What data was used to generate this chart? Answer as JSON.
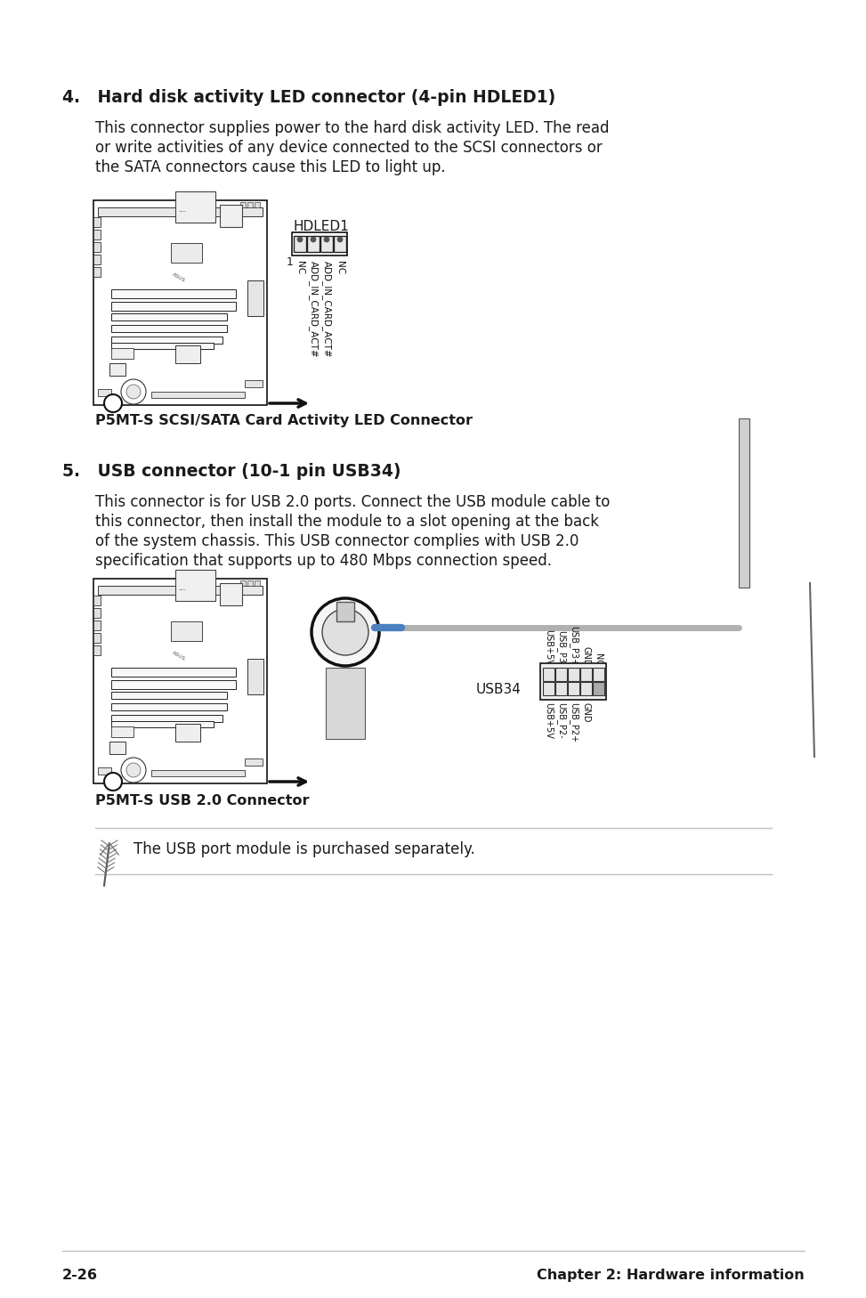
{
  "bg_color": "#ffffff",
  "text_color": "#1a1a1a",
  "section4_title": "4.   Hard disk activity LED connector (4-pin HDLED1)",
  "section4_body_line1": "This connector supplies power to the hard disk activity LED. The read",
  "section4_body_line2": "or write activities of any device connected to the SCSI connectors or",
  "section4_body_line3": "the SATA connectors cause this LED to light up.",
  "section4_diagram_label": "HDLED1",
  "section4_pin_labels": [
    "NC",
    "ADD_IN_CARD_ACT#",
    "ADD_IN_CARD_ACT#",
    "NC"
  ],
  "section4_caption": "P5MT-S SCSI/SATA Card Activity LED Connector",
  "section5_title": "5.   USB connector (10-1 pin USB34)",
  "section5_body_line1": "This connector is for USB 2.0 ports. Connect the USB module cable to",
  "section5_body_line2": "this connector, then install the module to a slot opening at the back",
  "section5_body_line3": "of the system chassis. This USB connector complies with USB 2.0",
  "section5_body_line4": "specification that supports up to 480 Mbps connection speed.",
  "section5_usb_label": "USB34",
  "section5_pin_labels_top": [
    "USB+5V",
    "USB_P3-",
    "USB_P3+",
    "GND",
    "NC"
  ],
  "section5_pin_labels_bot": [
    "USB+5V",
    "USB_P2-",
    "USB_P2+",
    "GND"
  ],
  "section5_caption": "P5MT-S USB 2.0 Connector",
  "note_text": "The USB port module is purchased separately.",
  "footer_left": "2-26",
  "footer_right": "Chapter 2: Hardware information",
  "footer_line_color": "#c0c0c0"
}
